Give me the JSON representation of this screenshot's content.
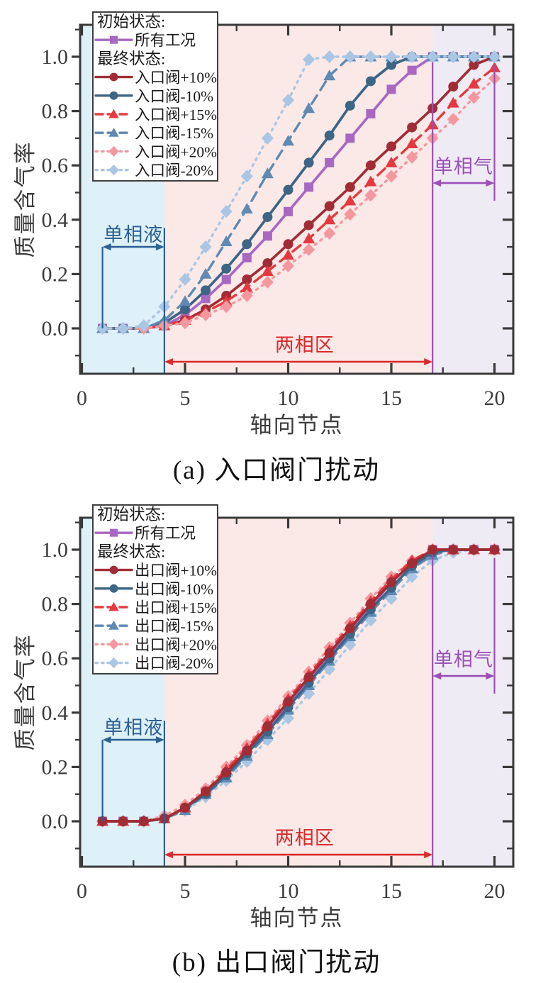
{
  "page": {
    "background": "#FFFFFF",
    "axis_color": "#3A3A3A",
    "tick_label_color": "#3C3C3C"
  },
  "chart_data": [
    {
      "id": "a",
      "type": "line",
      "caption": "(a) 入口阀门扰动",
      "xlabel": "轴向节点",
      "ylabel": "质量含气率",
      "x": [
        1,
        2,
        3,
        4,
        5,
        6,
        7,
        8,
        9,
        10,
        11,
        12,
        13,
        14,
        15,
        16,
        17,
        18,
        19,
        20
      ],
      "xlim": [
        0,
        20.9
      ],
      "ylim": [
        -0.167,
        1.118
      ],
      "x_major_ticks": [
        0,
        5,
        10,
        15,
        20
      ],
      "x_minor_ticks": [
        2.5,
        7.5,
        12.5,
        17.5
      ],
      "y_major_ticks": [
        0,
        0.2,
        0.4,
        0.6,
        0.8,
        1.0
      ],
      "y_tick_labels": [
        "0.0",
        "0.2",
        "0.4",
        "0.6",
        "0.8",
        "1.0"
      ],
      "y_minor_ticks": [
        -0.1,
        0.1,
        0.3,
        0.5,
        0.7,
        0.9,
        1.1
      ],
      "regions": [
        {
          "key": "single-phase-liquid-band",
          "x_from": 0,
          "x_to": 4,
          "color": "#DEF0F8"
        },
        {
          "key": "two-phase-band",
          "x_from": 4,
          "x_to": 17,
          "color": "#FBE9E8"
        },
        {
          "key": "single-phase-gas-band",
          "x_from": 17,
          "x_to": 20.9,
          "color": "#EEEBF5"
        }
      ],
      "legend": {
        "initial_header": "初始状态:",
        "final_header": "最终状态:"
      },
      "series": [
        {
          "key": "initial-all-cases",
          "name": "所有工况",
          "group": "initial",
          "color": "#A868C2",
          "line": "solid",
          "marker": "square",
          "values": [
            0,
            0,
            0,
            0.01,
            0.05,
            0.11,
            0.18,
            0.26,
            0.34,
            0.43,
            0.52,
            0.61,
            0.7,
            0.79,
            0.88,
            0.95,
            1,
            1,
            1,
            1
          ]
        },
        {
          "key": "inlet-valve-plus-10",
          "name": "入口阀+10%",
          "group": "final",
          "color": "#A22C35",
          "line": "solid",
          "marker": "circle",
          "values": [
            0,
            0,
            0,
            0.01,
            0.03,
            0.07,
            0.12,
            0.18,
            0.24,
            0.31,
            0.38,
            0.45,
            0.52,
            0.6,
            0.67,
            0.74,
            0.81,
            0.89,
            0.97,
            1
          ]
        },
        {
          "key": "inlet-valve-minus-10",
          "name": "入口阀-10%",
          "group": "final",
          "color": "#3D6586",
          "line": "solid",
          "marker": "circle",
          "values": [
            0,
            0,
            0,
            0.02,
            0.07,
            0.14,
            0.22,
            0.31,
            0.41,
            0.51,
            0.61,
            0.71,
            0.82,
            0.91,
            0.97,
            1,
            1,
            1,
            1,
            1
          ]
        },
        {
          "key": "inlet-valve-plus-15",
          "name": "入口阀+15%",
          "group": "final",
          "color": "#E6393F",
          "line": "dashed",
          "marker": "triangle",
          "values": [
            0,
            0,
            0,
            0.01,
            0.03,
            0.06,
            0.1,
            0.15,
            0.21,
            0.27,
            0.33,
            0.4,
            0.47,
            0.54,
            0.61,
            0.68,
            0.75,
            0.83,
            0.9,
            0.96
          ]
        },
        {
          "key": "inlet-valve-minus-15",
          "name": "入口阀-15%",
          "group": "final",
          "color": "#5E8AB4",
          "line": "dashed",
          "marker": "triangle",
          "values": [
            0,
            0,
            0,
            0.03,
            0.1,
            0.2,
            0.32,
            0.44,
            0.57,
            0.69,
            0.81,
            0.93,
            1,
            1,
            1,
            1,
            1,
            1,
            1,
            1
          ]
        },
        {
          "key": "inlet-valve-plus-20",
          "name": "入口阀+20%",
          "group": "final",
          "color": "#F5989D",
          "line": "dotted",
          "marker": "diamond",
          "values": [
            0,
            0,
            0,
            0.01,
            0.02,
            0.05,
            0.08,
            0.12,
            0.17,
            0.23,
            0.29,
            0.35,
            0.42,
            0.49,
            0.56,
            0.63,
            0.7,
            0.77,
            0.85,
            0.92
          ]
        },
        {
          "key": "inlet-valve-minus-20",
          "name": "入口阀-20%",
          "group": "final",
          "color": "#A9C6E4",
          "line": "dotted",
          "marker": "diamond",
          "values": [
            0,
            0,
            0.01,
            0.08,
            0.18,
            0.3,
            0.43,
            0.56,
            0.7,
            0.84,
            0.99,
            1,
            1,
            1,
            1,
            1,
            1,
            1,
            1,
            1
          ]
        }
      ],
      "annotations": [
        {
          "key": "single-phase-liquid",
          "text": "单相液",
          "color": "#2B6294",
          "x_from": 1,
          "x_to": 4,
          "arrow_y": 0.3,
          "label_x": 2.5,
          "label_y": 0.345,
          "drop_lines": [
            {
              "x": 1,
              "y_from": 0.3,
              "y_to": 0.0
            },
            {
              "x": 4,
              "y_from": 0.37,
              "y_to": -0.167
            }
          ]
        },
        {
          "key": "two-phase",
          "text": "两相区",
          "color": "#D92B2B",
          "x_from": 4,
          "x_to": 17,
          "arrow_y": -0.123,
          "label_x": 10.8,
          "label_y": -0.062,
          "drop_lines": []
        },
        {
          "key": "single-phase-gas",
          "text": "单相气",
          "color": "#9C4FB5",
          "x_from": 17,
          "x_to": 20,
          "arrow_y": 0.535,
          "label_x": 18.5,
          "label_y": 0.595,
          "drop_lines": [
            {
              "x": 17,
              "y_from": 0.98,
              "y_to": -0.167
            },
            {
              "x": 20,
              "y_from": 0.97,
              "y_to": 0.47
            }
          ]
        }
      ]
    },
    {
      "id": "b",
      "type": "line",
      "caption": "(b) 出口阀门扰动",
      "xlabel": "轴向节点",
      "ylabel": "质量含气率",
      "x": [
        1,
        2,
        3,
        4,
        5,
        6,
        7,
        8,
        9,
        10,
        11,
        12,
        13,
        14,
        15,
        16,
        17,
        18,
        19,
        20
      ],
      "xlim": [
        0,
        20.9
      ],
      "ylim": [
        -0.167,
        1.118
      ],
      "x_major_ticks": [
        0,
        5,
        10,
        15,
        20
      ],
      "x_minor_ticks": [
        2.5,
        7.5,
        12.5,
        17.5
      ],
      "y_major_ticks": [
        0,
        0.2,
        0.4,
        0.6,
        0.8,
        1.0
      ],
      "y_tick_labels": [
        "0.0",
        "0.2",
        "0.4",
        "0.6",
        "0.8",
        "1.0"
      ],
      "y_minor_ticks": [
        -0.1,
        0.1,
        0.3,
        0.5,
        0.7,
        0.9,
        1.1
      ],
      "regions": [
        {
          "key": "single-phase-liquid-band",
          "x_from": 0,
          "x_to": 4,
          "color": "#DEF0F8"
        },
        {
          "key": "two-phase-band",
          "x_from": 4,
          "x_to": 17,
          "color": "#FBE9E8"
        },
        {
          "key": "single-phase-gas-band",
          "x_from": 17,
          "x_to": 20.9,
          "color": "#EEEBF5"
        }
      ],
      "legend": {
        "initial_header": "初始状态:",
        "final_header": "最终状态:"
      },
      "series": [
        {
          "key": "initial-all-cases",
          "name": "所有工况",
          "group": "initial",
          "color": "#A868C2",
          "line": "solid",
          "marker": "square",
          "values": [
            0,
            0,
            0,
            0.01,
            0.05,
            0.11,
            0.18,
            0.26,
            0.34,
            0.43,
            0.52,
            0.61,
            0.7,
            0.79,
            0.88,
            0.95,
            1,
            1,
            1,
            1
          ]
        },
        {
          "key": "outlet-valve-plus-10",
          "name": "出口阀+10%",
          "group": "final",
          "color": "#A22C35",
          "line": "solid",
          "marker": "circle",
          "values": [
            0,
            0,
            0,
            0.01,
            0.05,
            0.11,
            0.18,
            0.26,
            0.35,
            0.44,
            0.53,
            0.62,
            0.71,
            0.8,
            0.88,
            0.95,
            1,
            1,
            1,
            1
          ]
        },
        {
          "key": "outlet-valve-minus-10",
          "name": "出口阀-10%",
          "group": "final",
          "color": "#3D6586",
          "line": "solid",
          "marker": "circle",
          "values": [
            0,
            0,
            0,
            0.01,
            0.05,
            0.1,
            0.17,
            0.25,
            0.33,
            0.42,
            0.51,
            0.6,
            0.69,
            0.78,
            0.86,
            0.94,
            0.99,
            1,
            1,
            1
          ]
        },
        {
          "key": "outlet-valve-plus-15",
          "name": "出口阀+15%",
          "group": "final",
          "color": "#E6393F",
          "line": "dashed",
          "marker": "triangle",
          "values": [
            0,
            0,
            0,
            0.01,
            0.05,
            0.11,
            0.19,
            0.27,
            0.36,
            0.45,
            0.54,
            0.63,
            0.72,
            0.81,
            0.89,
            0.96,
            1,
            1,
            1,
            1
          ]
        },
        {
          "key": "outlet-valve-minus-15",
          "name": "出口阀-15%",
          "group": "final",
          "color": "#5E8AB4",
          "line": "dashed",
          "marker": "triangle",
          "values": [
            0,
            0,
            0,
            0.01,
            0.04,
            0.1,
            0.16,
            0.24,
            0.32,
            0.41,
            0.5,
            0.59,
            0.68,
            0.77,
            0.85,
            0.93,
            0.98,
            1,
            1,
            1
          ]
        },
        {
          "key": "outlet-valve-plus-20",
          "name": "出口阀+20%",
          "group": "final",
          "color": "#F5989D",
          "line": "dotted",
          "marker": "diamond",
          "values": [
            0,
            0,
            0,
            0.02,
            0.06,
            0.12,
            0.2,
            0.28,
            0.37,
            0.46,
            0.55,
            0.64,
            0.73,
            0.82,
            0.9,
            0.96,
            1,
            1,
            1,
            1
          ]
        },
        {
          "key": "outlet-valve-minus-20",
          "name": "出口阀-20%",
          "group": "final",
          "color": "#A9C6E4",
          "line": "dotted",
          "marker": "diamond",
          "values": [
            0,
            0,
            0,
            0.01,
            0.04,
            0.09,
            0.15,
            0.22,
            0.3,
            0.38,
            0.47,
            0.56,
            0.65,
            0.74,
            0.82,
            0.9,
            0.96,
            0.99,
            1,
            1
          ]
        }
      ],
      "annotations": [
        {
          "key": "single-phase-liquid",
          "text": "单相液",
          "color": "#2B6294",
          "x_from": 1,
          "x_to": 4,
          "arrow_y": 0.3,
          "label_x": 2.5,
          "label_y": 0.345,
          "drop_lines": [
            {
              "x": 1,
              "y_from": 0.3,
              "y_to": 0.0
            },
            {
              "x": 4,
              "y_from": 0.37,
              "y_to": -0.167
            }
          ]
        },
        {
          "key": "two-phase",
          "text": "两相区",
          "color": "#D92B2B",
          "x_from": 4,
          "x_to": 17,
          "arrow_y": -0.123,
          "label_x": 10.8,
          "label_y": -0.062,
          "drop_lines": []
        },
        {
          "key": "single-phase-gas",
          "text": "单相气",
          "color": "#9C4FB5",
          "x_from": 17,
          "x_to": 20,
          "arrow_y": 0.535,
          "label_x": 18.5,
          "label_y": 0.595,
          "drop_lines": [
            {
              "x": 17,
              "y_from": 0.98,
              "y_to": -0.167
            },
            {
              "x": 20,
              "y_from": 0.97,
              "y_to": 0.47
            }
          ]
        }
      ]
    }
  ]
}
